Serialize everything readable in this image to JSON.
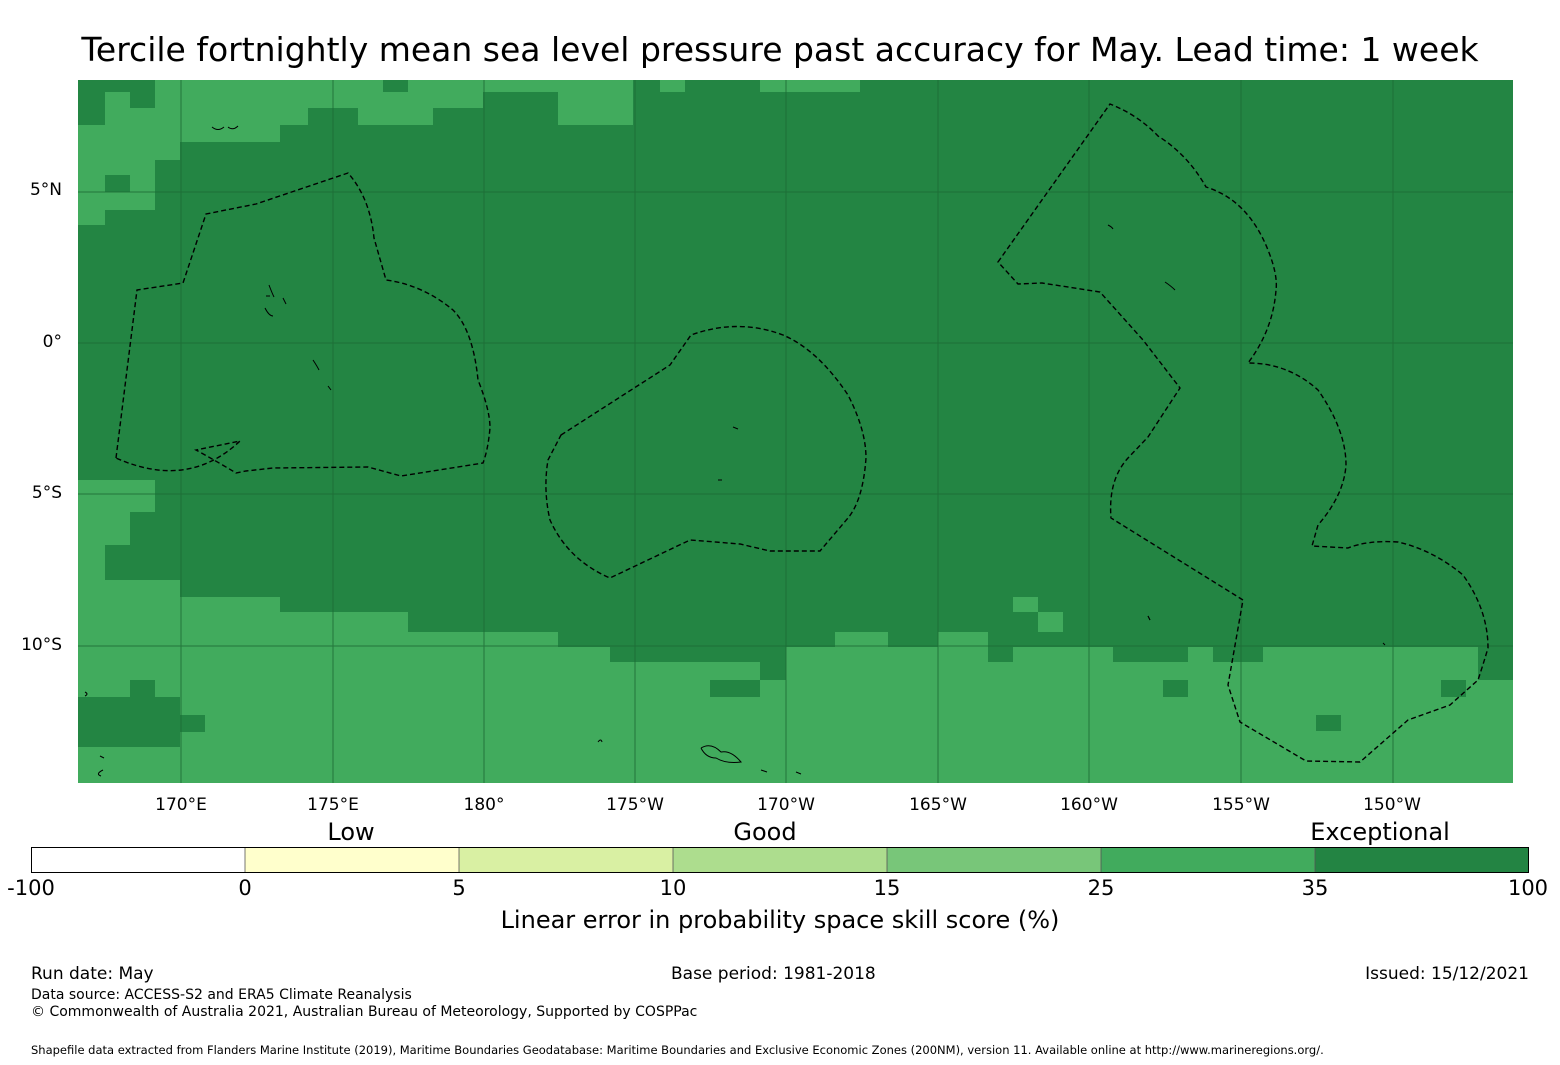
{
  "title": "Tercile fortnightly mean sea level pressure past accuracy for May. Lead time: 1 week",
  "map": {
    "lat_labels": [
      "5°N",
      "0°",
      "5°S",
      "10°S"
    ],
    "lon_labels": [
      "170°E",
      "175°E",
      "180°",
      "175°W",
      "170°W",
      "165°W",
      "160°W",
      "155°W",
      "150°W"
    ],
    "colors": {
      "exceptional": "#238543",
      "good_high": "#41ab5d",
      "grid": "#1d6a35",
      "border": "#000000"
    }
  },
  "categories": [
    "Low",
    "Good",
    "Exceptional"
  ],
  "colorbar": {
    "ticks": [
      "-100",
      "0",
      "5",
      "10",
      "15",
      "25",
      "35",
      "100"
    ],
    "colors": [
      "#ffffff",
      "#ffffcc",
      "#d9f0a3",
      "#addd8e",
      "#78c679",
      "#41ab5d",
      "#238443"
    ],
    "title": "Linear error in probability space skill score (%)"
  },
  "footer": {
    "run_date": "Run date: May",
    "base_period": "Base period: 1981-2018",
    "issued": "Issued: 15/12/2021",
    "data_source": "Data source: ACCESS-S2 and ERA5 Climate Reanalysis",
    "copyright": "© Commonwealth of Australia 2021, Australian Bureau of Meteorology, Supported by COSPPac",
    "shapefile": "Shapefile data extracted from Flanders Marine Institute (2019), Maritime Boundaries Geodatabase: Maritime Boundaries and Exclusive Economic Zones (200NM), version 11. Available online at http://www.marineregions.org/."
  }
}
